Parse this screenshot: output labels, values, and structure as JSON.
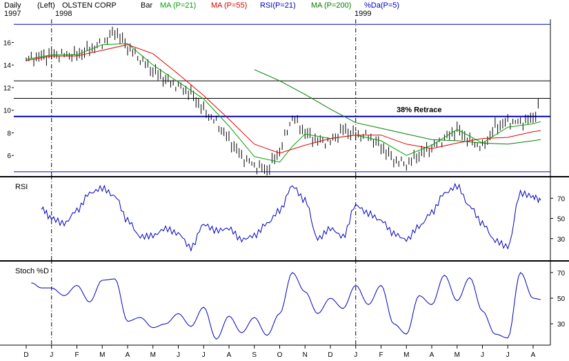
{
  "header": {
    "row1": [
      {
        "text": "Daily",
        "color": "#000000"
      },
      {
        "text": "(Left)",
        "color": "#000000"
      },
      {
        "text": "OLSTEN CORP",
        "color": "#000000"
      },
      {
        "text": "Bar",
        "color": "#000000"
      },
      {
        "text": "MA (P=21)",
        "color": "#00a000"
      },
      {
        "text": "MA (P=55)",
        "color": "#e00000"
      },
      {
        "text": "RSI(P=21)",
        "color": "#0000c0"
      },
      {
        "text": "MA (P=200)",
        "color": "#008000"
      },
      {
        "text": "%Da(P=5)",
        "color": "#0000c0"
      }
    ],
    "row2": [
      {
        "text": "1997"
      },
      {
        "text": "1998"
      },
      {
        "text": "1999"
      }
    ]
  },
  "chart_data": [
    {
      "type": "bar",
      "panel": "price",
      "title": "OLSTEN CORP",
      "ylim": [
        4.3,
        17.8
      ],
      "yticks": [
        6,
        8,
        10,
        12,
        14,
        16
      ],
      "annotation": "38% Retrace",
      "horizontal_levels": [
        17.6,
        12.6,
        11.05,
        9.45,
        4.55
      ],
      "x_months": [
        "D",
        "J",
        "F",
        "M",
        "A",
        "M",
        "J",
        "J",
        "A",
        "S",
        "O",
        "N",
        "D",
        "J",
        "F",
        "M",
        "A",
        "M",
        "J",
        "J",
        "A"
      ],
      "series": [
        {
          "name": "Price",
          "color": "#000000",
          "x": [
            0,
            1,
            2,
            3,
            3.5,
            4,
            4.5,
            5,
            5.5,
            6,
            6.5,
            7,
            7.5,
            8,
            8.5,
            9,
            9.5,
            10,
            10.5,
            11,
            11.5,
            12,
            12.5,
            13,
            13.5,
            14,
            14.5,
            15,
            15.5,
            16,
            16.5,
            17,
            17.5,
            18,
            18.5,
            19,
            19.5,
            20,
            20.3
          ],
          "values": [
            14.5,
            14.9,
            14.9,
            15.9,
            17.0,
            15.6,
            14.5,
            13.5,
            12.7,
            12.1,
            11.5,
            10.0,
            8.9,
            7.4,
            5.9,
            5.1,
            4.7,
            6.4,
            9.4,
            8.0,
            7.3,
            7.2,
            8.3,
            7.8,
            7.7,
            6.8,
            5.6,
            5.2,
            6.1,
            6.7,
            7.5,
            8.3,
            7.3,
            6.7,
            8.5,
            9.0,
            8.9,
            9.3,
            10.8
          ]
        },
        {
          "name": "MA (P=21)",
          "color": "#00a000",
          "x": [
            0,
            1,
            2,
            3,
            4,
            5,
            6,
            7,
            8,
            9,
            10,
            10.5,
            11,
            12,
            13,
            14,
            15,
            16,
            17,
            18,
            19,
            20,
            20.3
          ],
          "values": [
            14.5,
            14.9,
            14.9,
            15.8,
            15.9,
            14.0,
            12.5,
            11.0,
            8.6,
            5.9,
            5.4,
            6.8,
            7.9,
            7.5,
            7.8,
            7.3,
            6.0,
            6.9,
            8.3,
            7.1,
            8.5,
            8.8,
            9.0
          ]
        },
        {
          "name": "MA (P=55)",
          "color": "#e00000",
          "x": [
            0,
            1,
            2,
            3,
            4,
            5,
            6,
            7,
            8,
            9,
            10,
            11,
            12,
            13,
            14,
            15,
            16,
            17,
            18,
            19,
            20,
            20.3
          ],
          "values": [
            14.4,
            14.8,
            14.8,
            15.3,
            15.8,
            15.0,
            13.2,
            11.3,
            9.2,
            7.0,
            6.2,
            6.9,
            7.5,
            7.8,
            7.8,
            7.0,
            6.6,
            7.1,
            7.5,
            7.6,
            8.1,
            8.2
          ]
        },
        {
          "name": "MA (P=200)",
          "color": "#008000",
          "x": [
            9,
            10,
            11,
            12,
            13,
            14,
            15,
            16,
            17,
            18,
            19,
            20,
            20.3
          ],
          "values": [
            13.6,
            12.6,
            11.4,
            10.1,
            8.9,
            8.4,
            7.9,
            7.4,
            7.3,
            7.1,
            7.0,
            7.3,
            7.4
          ]
        }
      ]
    },
    {
      "type": "line",
      "panel": "rsi",
      "title": "RSI",
      "ylim": [
        10,
        90
      ],
      "yticks": [
        30,
        50,
        70
      ],
      "series": [
        {
          "name": "RSI(P=21)",
          "color": "#0000c0",
          "x": [
            0.6,
            1,
            1.5,
            2,
            2.5,
            3,
            3.5,
            4,
            4.5,
            5,
            5.5,
            6,
            6.5,
            7,
            7.5,
            8,
            8.5,
            9,
            9.5,
            10,
            10.5,
            11,
            11.5,
            12,
            12.5,
            13,
            13.5,
            14,
            14.5,
            15,
            15.5,
            16,
            16.5,
            17,
            17.5,
            18,
            18.5,
            19,
            19.5,
            20,
            20.3
          ],
          "values": [
            60,
            50,
            45,
            58,
            75,
            80,
            72,
            48,
            32,
            33,
            40,
            35,
            21,
            44,
            38,
            40,
            29,
            33,
            45,
            58,
            82,
            68,
            30,
            40,
            32,
            63,
            55,
            48,
            35,
            29,
            42,
            56,
            75,
            82,
            62,
            45,
            28,
            22,
            75,
            72,
            68
          ]
        }
      ]
    },
    {
      "type": "line",
      "panel": "stoch",
      "title": "Stoch %D",
      "ylim": [
        15,
        78
      ],
      "yticks": [
        30,
        50,
        70
      ],
      "series": [
        {
          "name": "%Da(P=5)",
          "color": "#0000c0",
          "x": [
            0.2,
            0.6,
            1,
            1.5,
            2,
            2.5,
            3,
            3.5,
            4,
            4.5,
            5,
            5.5,
            6,
            6.5,
            7,
            7.5,
            8,
            8.5,
            9,
            9.5,
            10,
            10.5,
            11,
            11.5,
            12,
            12.5,
            13,
            13.5,
            14,
            14.5,
            15,
            15.5,
            16,
            16.5,
            17,
            17.5,
            18,
            18.5,
            19,
            19.5,
            20,
            20.3
          ],
          "values": [
            62,
            58,
            58,
            52,
            60,
            47,
            64,
            65,
            32,
            35,
            27,
            30,
            38,
            28,
            43,
            18,
            36,
            23,
            35,
            21,
            38,
            70,
            55,
            38,
            50,
            42,
            60,
            45,
            60,
            30,
            22,
            52,
            45,
            68,
            48,
            66,
            40,
            22,
            19,
            70,
            50,
            49
          ]
        }
      ]
    }
  ]
}
